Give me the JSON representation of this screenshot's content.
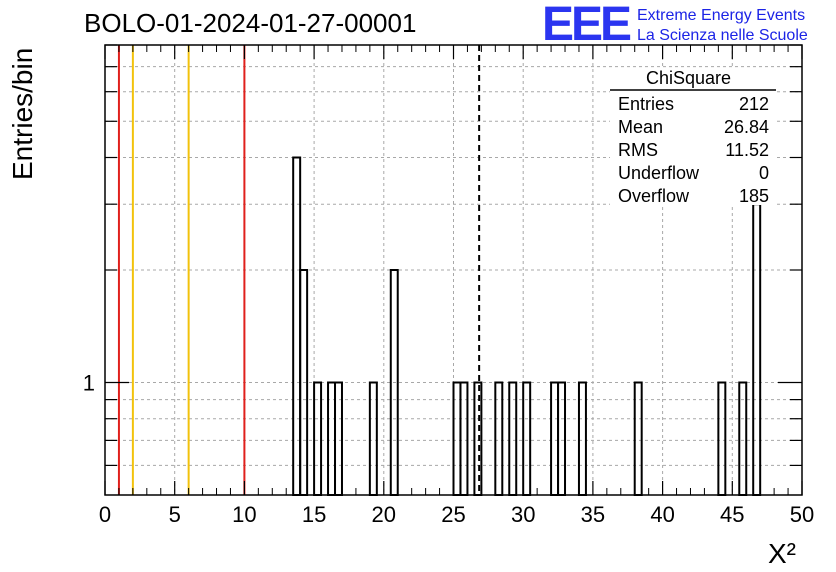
{
  "chart_data": {
    "type": "bar",
    "title": "BOLO-01-2024-01-27-00001",
    "xlabel": "X²",
    "ylabel": "Entries/bin",
    "xlim": [
      0,
      50
    ],
    "ylim": [
      0.5,
      8
    ],
    "yscale": "log",
    "grid": true,
    "bin_width": 0.5,
    "x_ticks": [
      "0",
      "5",
      "10",
      "15",
      "20",
      "25",
      "30",
      "35",
      "40",
      "45",
      "50"
    ],
    "y_tick_labels": [
      {
        "value": 1,
        "label": "1"
      }
    ],
    "bins": [
      {
        "x": 13.5,
        "value": 4
      },
      {
        "x": 14.0,
        "value": 2
      },
      {
        "x": 15.0,
        "value": 1
      },
      {
        "x": 16.0,
        "value": 1
      },
      {
        "x": 16.5,
        "value": 1
      },
      {
        "x": 19.0,
        "value": 1
      },
      {
        "x": 20.5,
        "value": 2
      },
      {
        "x": 25.0,
        "value": 1
      },
      {
        "x": 25.5,
        "value": 1
      },
      {
        "x": 26.5,
        "value": 1
      },
      {
        "x": 28.0,
        "value": 1
      },
      {
        "x": 29.0,
        "value": 1
      },
      {
        "x": 30.0,
        "value": 1
      },
      {
        "x": 32.0,
        "value": 1
      },
      {
        "x": 32.5,
        "value": 1
      },
      {
        "x": 34.0,
        "value": 1
      },
      {
        "x": 38.0,
        "value": 1
      },
      {
        "x": 44.0,
        "value": 1
      },
      {
        "x": 45.5,
        "value": 1
      },
      {
        "x": 46.5,
        "value": 3
      }
    ],
    "reference_lines": [
      {
        "x": 1,
        "color": "#e0201c"
      },
      {
        "x": 2,
        "color": "#f2c20c"
      },
      {
        "x": 6,
        "color": "#f2c20c"
      },
      {
        "x": 10,
        "color": "#e0201c"
      }
    ],
    "mean_line": {
      "x": 26.84,
      "style": "dashed",
      "color": "#000000"
    },
    "stats_box": {
      "title": "ChiSquare",
      "rows": [
        {
          "label": "Entries",
          "value": "212"
        },
        {
          "label": "Mean",
          "value": "26.84"
        },
        {
          "label": "RMS",
          "value": "11.52"
        },
        {
          "label": "Underflow",
          "value": "0"
        },
        {
          "label": "Overflow",
          "value": "185"
        }
      ]
    }
  },
  "logo": {
    "mark": "EEE",
    "line1": "Extreme Energy Events",
    "line2": "La Scienza nelle Scuole",
    "color": "#2b35f0"
  }
}
